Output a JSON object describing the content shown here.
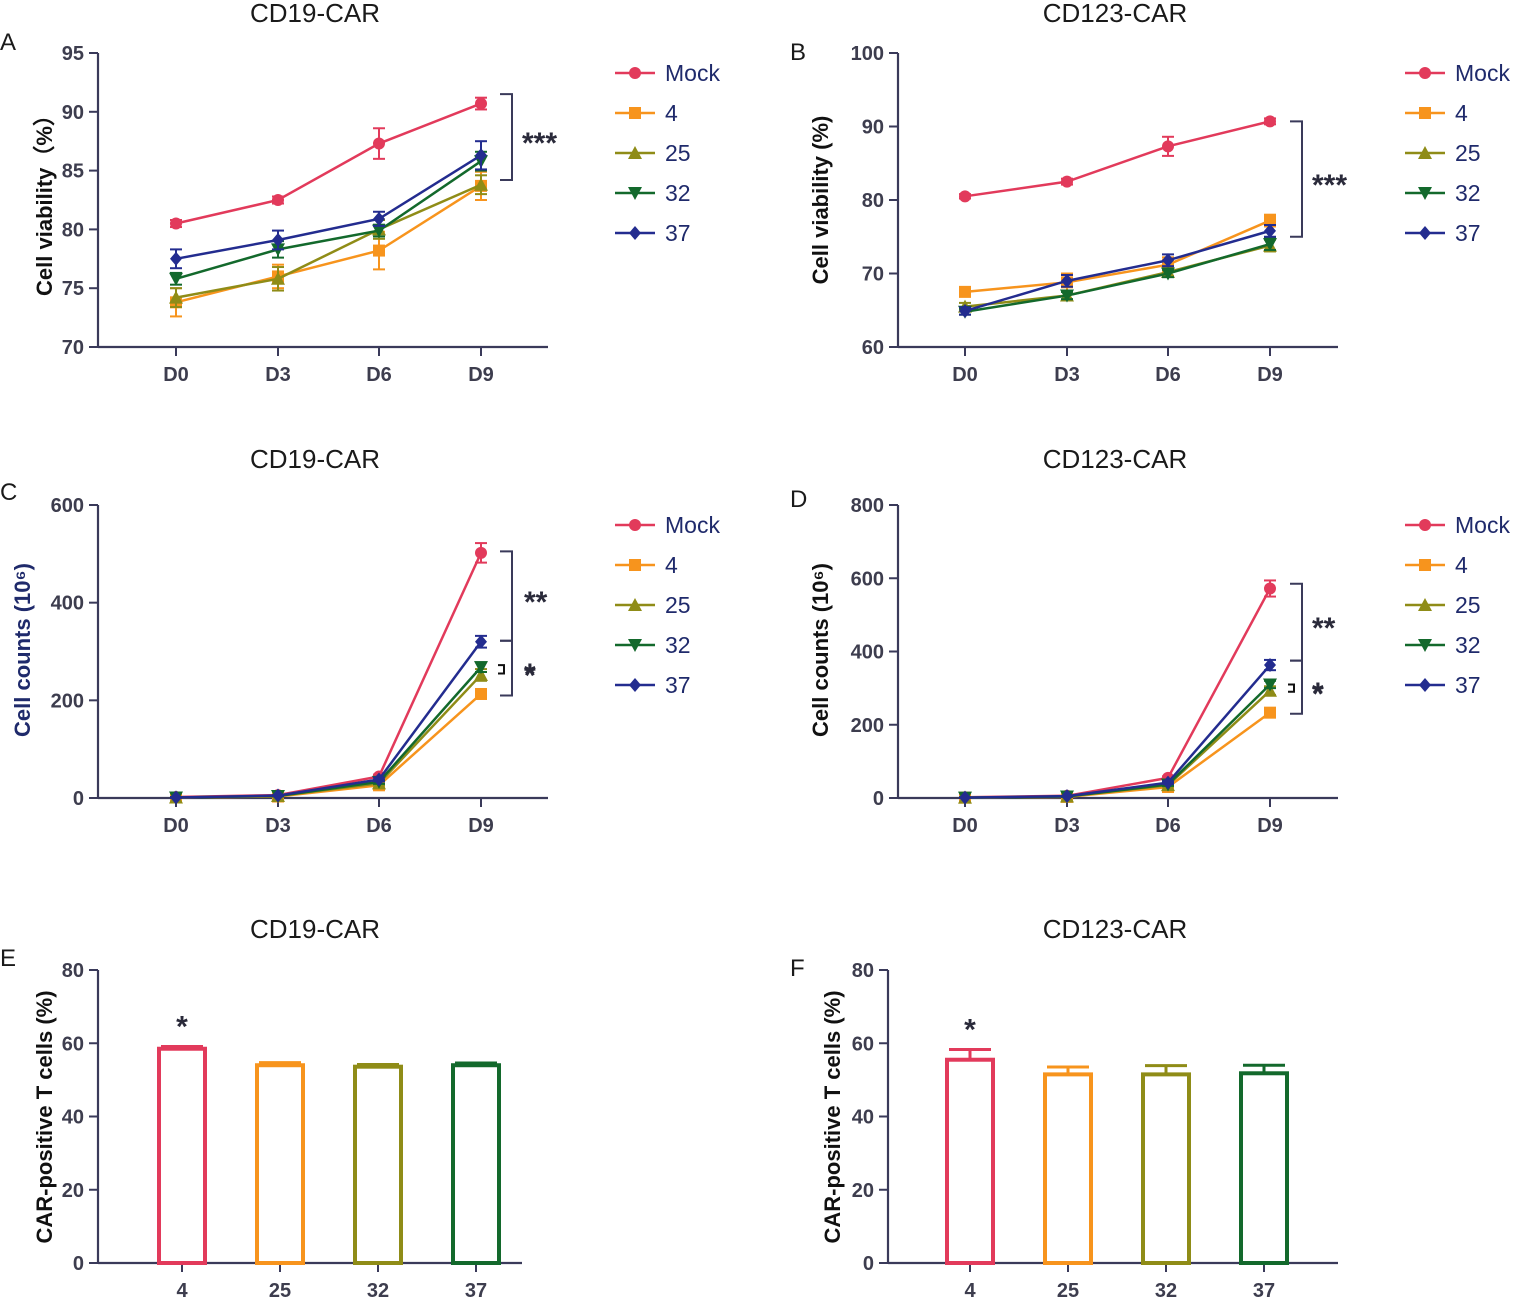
{
  "colors": {
    "axis": "#3a3a5a",
    "bracket": "#3a3a5a",
    "series": {
      "Mock": "#e23a5b",
      "4": "#f7941d",
      "25": "#8f8c17",
      "32": "#13692c",
      "37": "#232c8f"
    },
    "bars": [
      "#e23a5b",
      "#f7941d",
      "#8f8c17",
      "#13692c"
    ]
  },
  "chart_data": [
    {
      "panel": "A",
      "title": "CD19-CAR",
      "type": "line",
      "xlabel": "",
      "ylabel": "Cell viability（%）",
      "categories": [
        "D0",
        "D3",
        "D6",
        "D9"
      ],
      "ylim": [
        70,
        95
      ],
      "yticks": [
        70,
        75,
        80,
        85,
        90,
        95
      ],
      "series": [
        {
          "name": "Mock",
          "marker": "circle",
          "values": [
            80.5,
            82.5,
            87.3,
            90.7
          ],
          "errors": [
            0.3,
            0.3,
            1.3,
            0.5
          ]
        },
        {
          "name": "4",
          "marker": "square",
          "values": [
            73.8,
            76.0,
            78.2,
            83.7
          ],
          "errors": [
            1.2,
            1.0,
            1.6,
            1.2
          ]
        },
        {
          "name": "25",
          "marker": "triangle-up",
          "values": [
            74.2,
            75.8,
            80.0,
            83.8
          ],
          "errors": [
            0.8,
            1.0,
            0.8,
            0.8
          ]
        },
        {
          "name": "32",
          "marker": "triangle-down",
          "values": [
            75.8,
            78.3,
            79.9,
            85.8
          ],
          "errors": [
            0.5,
            0.7,
            0.5,
            0.8
          ]
        },
        {
          "name": "37",
          "marker": "diamond",
          "values": [
            77.5,
            79.1,
            80.9,
            86.3
          ],
          "errors": [
            0.8,
            0.8,
            0.6,
            1.2
          ]
        }
      ],
      "annotations": [
        {
          "text": "***",
          "from": 91.5,
          "to": 84.2
        }
      ]
    },
    {
      "panel": "B",
      "title": "CD123-CAR",
      "type": "line",
      "xlabel": "",
      "ylabel": "Cell viability (%)",
      "categories": [
        "D0",
        "D3",
        "D6",
        "D9"
      ],
      "ylim": [
        60,
        100
      ],
      "yticks": [
        60,
        70,
        80,
        90,
        100
      ],
      "series": [
        {
          "name": "Mock",
          "marker": "circle",
          "values": [
            80.5,
            82.5,
            87.3,
            90.7
          ],
          "errors": [
            0.3,
            0.4,
            1.3,
            0.4
          ]
        },
        {
          "name": "4",
          "marker": "square",
          "values": [
            67.5,
            68.8,
            71.2,
            77.2
          ],
          "errors": [
            0.5,
            1.2,
            1.0,
            0.8
          ]
        },
        {
          "name": "25",
          "marker": "triangle-up",
          "values": [
            65.5,
            67.0,
            70.2,
            73.8
          ],
          "errors": [
            0.5,
            0.5,
            0.5,
            0.8
          ]
        },
        {
          "name": "32",
          "marker": "triangle-down",
          "values": [
            64.8,
            67.0,
            70.0,
            74.0
          ],
          "errors": [
            0.4,
            0.5,
            0.5,
            0.8
          ]
        },
        {
          "name": "37",
          "marker": "diamond",
          "values": [
            64.9,
            69.0,
            71.8,
            75.8
          ],
          "errors": [
            0.5,
            0.8,
            0.8,
            0.8
          ]
        }
      ],
      "annotations": [
        {
          "text": "***",
          "from": 90.7,
          "to": 75.0
        }
      ]
    },
    {
      "panel": "C",
      "title": "CD19-CAR",
      "type": "line",
      "xlabel": "",
      "ylabel": "Cell counts (10⁶)",
      "categories": [
        "D0",
        "D3",
        "D6",
        "D9"
      ],
      "ylim": [
        0,
        600
      ],
      "yticks": [
        0,
        200,
        400,
        600
      ],
      "series": [
        {
          "name": "Mock",
          "marker": "circle",
          "values": [
            2,
            6,
            44,
            502
          ],
          "errors": [
            1,
            1,
            4,
            20
          ]
        },
        {
          "name": "4",
          "marker": "square",
          "values": [
            1,
            3,
            26,
            213
          ],
          "errors": [
            1,
            1,
            4,
            8
          ]
        },
        {
          "name": "25",
          "marker": "triangle-up",
          "values": [
            1,
            4,
            30,
            252
          ],
          "errors": [
            1,
            1,
            4,
            12
          ]
        },
        {
          "name": "32",
          "marker": "triangle-down",
          "values": [
            1,
            4,
            33,
            268
          ],
          "errors": [
            1,
            1,
            4,
            10
          ]
        },
        {
          "name": "37",
          "marker": "diamond",
          "values": [
            1,
            5,
            38,
            320
          ],
          "errors": [
            1,
            1,
            4,
            12
          ]
        }
      ],
      "annotations": [
        {
          "text": "**",
          "from": 505,
          "to": 322
        },
        {
          "text": "*",
          "from": 272,
          "to": 255,
          "short": true
        },
        {
          "text": "*",
          "from": 322,
          "to": 210
        }
      ]
    },
    {
      "panel": "D",
      "title": "CD123-CAR",
      "type": "line",
      "xlabel": "",
      "ylabel": "Cell counts (10⁶)",
      "categories": [
        "D0",
        "D3",
        "D6",
        "D9"
      ],
      "ylim": [
        0,
        800
      ],
      "yticks": [
        0,
        200,
        400,
        600,
        800
      ],
      "series": [
        {
          "name": "Mock",
          "marker": "circle",
          "values": [
            2,
            6,
            55,
            572
          ],
          "errors": [
            1,
            1,
            4,
            22
          ]
        },
        {
          "name": "4",
          "marker": "square",
          "values": [
            1,
            3,
            30,
            233
          ],
          "errors": [
            1,
            1,
            4,
            8
          ]
        },
        {
          "name": "25",
          "marker": "triangle-up",
          "values": [
            1,
            4,
            35,
            293
          ],
          "errors": [
            1,
            1,
            4,
            12
          ]
        },
        {
          "name": "32",
          "marker": "triangle-down",
          "values": [
            1,
            4,
            37,
            310
          ],
          "errors": [
            1,
            1,
            4,
            10
          ]
        },
        {
          "name": "37",
          "marker": "diamond",
          "values": [
            1,
            5,
            42,
            363
          ],
          "errors": [
            1,
            1,
            4,
            14
          ]
        }
      ],
      "annotations": [
        {
          "text": "**",
          "from": 585,
          "to": 375
        },
        {
          "text": "*",
          "from": 310,
          "to": 290,
          "short": true
        },
        {
          "text": "*",
          "from": 375,
          "to": 230
        }
      ]
    },
    {
      "panel": "E",
      "title": "CD19-CAR",
      "type": "bar",
      "xlabel": "",
      "ylabel": "CAR-positive T cells (%)",
      "categories": [
        "4",
        "25",
        "32",
        "37"
      ],
      "ylim": [
        0,
        80
      ],
      "yticks": [
        0,
        20,
        40,
        60,
        80
      ],
      "values": [
        58.5,
        54.0,
        53.6,
        54.0
      ],
      "errors": [
        0.6,
        0.7,
        0.6,
        0.6
      ],
      "annotations": [
        {
          "text": "*",
          "category": "4"
        }
      ]
    },
    {
      "panel": "F",
      "title": "CD123-CAR",
      "type": "bar",
      "xlabel": "",
      "ylabel": "CAR-positive T cells (%)",
      "categories": [
        "4",
        "25",
        "32",
        "37"
      ],
      "ylim": [
        0,
        80
      ],
      "yticks": [
        0,
        20,
        40,
        60,
        80
      ],
      "values": [
        55.5,
        51.5,
        51.5,
        51.8
      ],
      "errors": [
        2.8,
        2.0,
        2.4,
        2.2
      ],
      "annotations": [
        {
          "text": "*",
          "category": "4"
        }
      ]
    }
  ]
}
